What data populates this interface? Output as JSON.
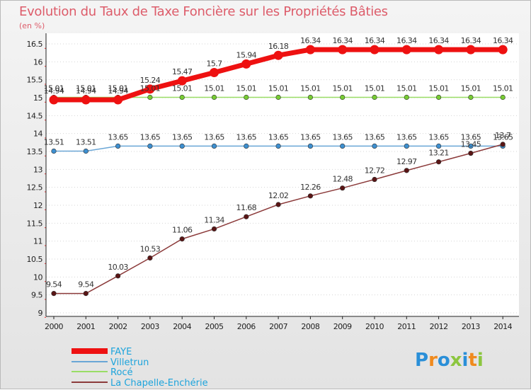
{
  "title": "Evolution du Taux de Taxe Foncière sur les Propriétés Bâties",
  "y_unit": "(en %)",
  "logo_text": "Proxiti",
  "chart_data": {
    "type": "line",
    "x": [
      "2000",
      "2001",
      "2002",
      "2003",
      "2004",
      "2005",
      "2006",
      "2007",
      "2008",
      "2009",
      "2010",
      "2011",
      "2012",
      "2013",
      "2014"
    ],
    "ylim": [
      9,
      16.5
    ],
    "yticks": [
      "9",
      "9.5",
      "10",
      "10.5",
      "11",
      "11.5",
      "12",
      "12.5",
      "13",
      "13.5",
      "14",
      "14.5",
      "15",
      "15.5",
      "16",
      "16.5"
    ],
    "grid": "dotted-horizontal",
    "legend_position": "bottom-left",
    "series": [
      {
        "name": "FAYE",
        "color": "#ee1111",
        "width": 7,
        "values": [
          14.94,
          14.94,
          14.94,
          15.24,
          15.47,
          15.7,
          15.94,
          16.18,
          16.34,
          16.34,
          16.34,
          16.34,
          16.34,
          16.34,
          16.34
        ],
        "labels": [
          "14.94",
          "14.94",
          "14.94",
          "15.24",
          "15.47",
          "15.7",
          "15.94",
          "16.18",
          "16.34",
          "16.34",
          "16.34",
          "16.34",
          "16.34",
          "16.34",
          "16.34"
        ]
      },
      {
        "name": "Villetrun",
        "color": "#6aa6d6",
        "marker": "#3d8fd0",
        "width": 1.5,
        "values": [
          13.51,
          13.51,
          13.65,
          13.65,
          13.65,
          13.65,
          13.65,
          13.65,
          13.65,
          13.65,
          13.65,
          13.65,
          13.65,
          13.65,
          13.65
        ],
        "labels": [
          "13.51",
          "13.51",
          "13.65",
          "13.65",
          "13.65",
          "13.65",
          "13.65",
          "13.65",
          "13.65",
          "13.65",
          "13.65",
          "13.65",
          "13.65",
          "13.65",
          "13.65"
        ]
      },
      {
        "name": "Rocé",
        "color": "#99dd66",
        "marker": "#77cc33",
        "width": 1.5,
        "values": [
          15.01,
          15.01,
          15.01,
          15.01,
          15.01,
          15.01,
          15.01,
          15.01,
          15.01,
          15.01,
          15.01,
          15.01,
          15.01,
          15.01,
          15.01
        ],
        "labels": [
          "15.01",
          "15.01",
          "15.01",
          "15.01",
          "15.01",
          "15.01",
          "15.01",
          "15.01",
          "15.01",
          "15.01",
          "15.01",
          "15.01",
          "15.01",
          "15.01",
          "15.01"
        ]
      },
      {
        "name": "La Chapelle-Enchérie",
        "color": "#8b3a3a",
        "marker": "#5a1515",
        "width": 1.5,
        "values": [
          9.54,
          9.54,
          10.03,
          10.53,
          11.06,
          11.34,
          11.68,
          12.02,
          12.26,
          12.48,
          12.72,
          12.97,
          13.21,
          13.45,
          13.7
        ],
        "labels": [
          "9.54",
          "9.54",
          "10.03",
          "10.53",
          "11.06",
          "11.34",
          "11.68",
          "12.02",
          "12.26",
          "12.48",
          "12.72",
          "12.97",
          "13.21",
          "13.45",
          "13.7"
        ]
      }
    ]
  }
}
